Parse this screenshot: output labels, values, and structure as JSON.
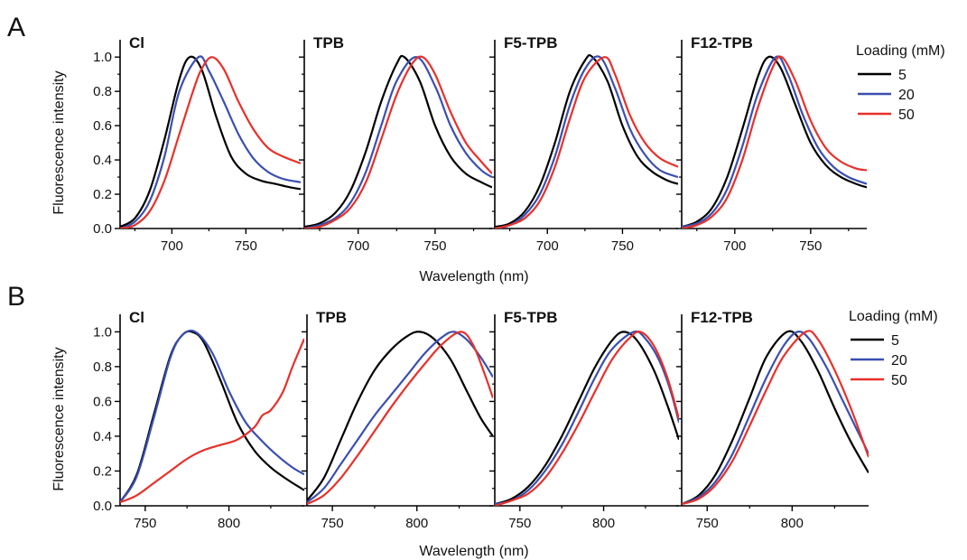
{
  "panels": [
    {
      "letter": "A",
      "ylabel": "Fluorescence intensity",
      "xlabel": "Wavelength (nm)",
      "legend": {
        "title": "Loading (mM)",
        "entries": [
          "5",
          "20",
          "50"
        ]
      },
      "yticks": [
        0.0,
        0.2,
        0.4,
        0.6,
        0.8,
        1.0
      ],
      "ytick_labels": [
        "0.0",
        "0.2",
        "0.4",
        "0.6",
        "0.8",
        "1.0"
      ]
    },
    {
      "letter": "B",
      "ylabel": "Fluorescence intensity",
      "xlabel": "Wavelength (nm)",
      "legend": {
        "title": "Loading (mM)",
        "entries": [
          "5",
          "20",
          "50"
        ]
      },
      "yticks": [
        0.0,
        0.2,
        0.4,
        0.6,
        0.8,
        1.0
      ],
      "ytick_labels": [
        "0.0",
        "0.2",
        "0.4",
        "0.6",
        "0.8",
        "1.0"
      ]
    }
  ],
  "series_colors": [
    "#000000",
    "#3a4fb0",
    "#e8302a"
  ],
  "chart_data": [
    {
      "type": "line",
      "panel": "A",
      "title": "Cl",
      "xlim": [
        665,
        787
      ],
      "ylim": [
        0,
        1.08
      ],
      "xticks": [
        700,
        750
      ],
      "series": [
        {
          "name": "5",
          "x": [
            665,
            675,
            685,
            695,
            705,
            712,
            720,
            730,
            740,
            750,
            760,
            770,
            780,
            787
          ],
          "y": [
            0.01,
            0.06,
            0.22,
            0.52,
            0.87,
            1.0,
            0.93,
            0.65,
            0.42,
            0.32,
            0.28,
            0.26,
            0.24,
            0.23
          ]
        },
        {
          "name": "20",
          "x": [
            665,
            675,
            685,
            695,
            705,
            718,
            725,
            735,
            745,
            755,
            765,
            775,
            787
          ],
          "y": [
            0.0,
            0.04,
            0.16,
            0.42,
            0.8,
            1.0,
            0.92,
            0.74,
            0.55,
            0.41,
            0.33,
            0.29,
            0.27
          ]
        },
        {
          "name": "50",
          "x": [
            665,
            675,
            685,
            695,
            705,
            715,
            720,
            727,
            735,
            745,
            755,
            765,
            775,
            787
          ],
          "y": [
            0.0,
            0.02,
            0.1,
            0.28,
            0.55,
            0.82,
            0.93,
            1.0,
            0.93,
            0.74,
            0.58,
            0.47,
            0.42,
            0.38
          ]
        }
      ]
    },
    {
      "type": "line",
      "panel": "A",
      "title": "TPB",
      "xlim": [
        665,
        787
      ],
      "ylim": [
        0,
        1.08
      ],
      "xticks": [
        700,
        750
      ],
      "series": [
        {
          "name": "5",
          "x": [
            665,
            675,
            685,
            695,
            705,
            715,
            725,
            730,
            740,
            750,
            760,
            770,
            780,
            787
          ],
          "y": [
            0.01,
            0.03,
            0.09,
            0.22,
            0.45,
            0.74,
            0.96,
            1.0,
            0.86,
            0.6,
            0.42,
            0.32,
            0.27,
            0.24
          ]
        },
        {
          "name": "20",
          "x": [
            665,
            675,
            685,
            695,
            705,
            715,
            725,
            738,
            750,
            760,
            770,
            780,
            787
          ],
          "y": [
            0.0,
            0.02,
            0.06,
            0.15,
            0.33,
            0.6,
            0.86,
            1.0,
            0.83,
            0.6,
            0.44,
            0.34,
            0.3
          ]
        },
        {
          "name": "50",
          "x": [
            665,
            675,
            685,
            695,
            705,
            715,
            725,
            735,
            742,
            750,
            760,
            770,
            780,
            787
          ],
          "y": [
            0.0,
            0.01,
            0.05,
            0.12,
            0.27,
            0.52,
            0.78,
            0.96,
            1.0,
            0.9,
            0.68,
            0.5,
            0.39,
            0.32
          ]
        }
      ]
    },
    {
      "type": "line",
      "panel": "A",
      "title": "F5-TPB",
      "xlim": [
        665,
        787
      ],
      "ylim": [
        0,
        1.08
      ],
      "xticks": [
        700,
        750
      ],
      "series": [
        {
          "name": "5",
          "x": [
            665,
            675,
            685,
            695,
            705,
            715,
            725,
            730,
            740,
            750,
            760,
            770,
            780,
            787
          ],
          "y": [
            0.01,
            0.03,
            0.1,
            0.25,
            0.5,
            0.8,
            0.98,
            1.0,
            0.86,
            0.6,
            0.42,
            0.33,
            0.28,
            0.26
          ]
        },
        {
          "name": "20",
          "x": [
            665,
            675,
            685,
            695,
            705,
            715,
            725,
            735,
            745,
            755,
            765,
            775,
            787
          ],
          "y": [
            0.0,
            0.02,
            0.08,
            0.2,
            0.42,
            0.72,
            0.93,
            1.0,
            0.82,
            0.58,
            0.43,
            0.34,
            0.3
          ]
        },
        {
          "name": "50",
          "x": [
            665,
            675,
            685,
            695,
            705,
            715,
            725,
            738,
            745,
            755,
            765,
            775,
            787
          ],
          "y": [
            0.0,
            0.02,
            0.06,
            0.16,
            0.36,
            0.64,
            0.88,
            1.0,
            0.9,
            0.66,
            0.5,
            0.41,
            0.36
          ]
        }
      ]
    },
    {
      "type": "line",
      "panel": "A",
      "title": "F12-TPB",
      "xlim": [
        665,
        787
      ],
      "ylim": [
        0,
        1.08
      ],
      "xticks": [
        700,
        750
      ],
      "series": [
        {
          "name": "5",
          "x": [
            665,
            675,
            685,
            695,
            705,
            715,
            722,
            730,
            740,
            750,
            760,
            770,
            780,
            787
          ],
          "y": [
            0.01,
            0.04,
            0.12,
            0.3,
            0.58,
            0.88,
            1.0,
            0.94,
            0.72,
            0.5,
            0.37,
            0.3,
            0.26,
            0.24
          ]
        },
        {
          "name": "20",
          "x": [
            665,
            675,
            685,
            695,
            705,
            715,
            727,
            735,
            745,
            755,
            765,
            775,
            787
          ],
          "y": [
            0.01,
            0.03,
            0.09,
            0.23,
            0.48,
            0.78,
            1.0,
            0.9,
            0.66,
            0.47,
            0.36,
            0.3,
            0.26
          ]
        },
        {
          "name": "50",
          "x": [
            665,
            675,
            685,
            695,
            705,
            715,
            725,
            731,
            740,
            750,
            760,
            770,
            780,
            787
          ],
          "y": [
            0.0,
            0.02,
            0.07,
            0.18,
            0.4,
            0.7,
            0.94,
            1.0,
            0.86,
            0.63,
            0.47,
            0.39,
            0.35,
            0.34
          ]
        }
      ]
    },
    {
      "type": "line",
      "panel": "B",
      "title": "Cl",
      "xlim": [
        735,
        845
      ],
      "ylim": [
        0,
        1.08
      ],
      "xticks": [
        750,
        800
      ],
      "series": [
        {
          "name": "5",
          "x": [
            735,
            745,
            755,
            765,
            772,
            778,
            785,
            795,
            805,
            815,
            825,
            835,
            845
          ],
          "y": [
            0.02,
            0.18,
            0.52,
            0.86,
            0.98,
            1.0,
            0.94,
            0.72,
            0.48,
            0.32,
            0.22,
            0.15,
            0.09
          ]
        },
        {
          "name": "20",
          "x": [
            735,
            745,
            755,
            765,
            772,
            780,
            790,
            800,
            810,
            820,
            830,
            838,
            845
          ],
          "y": [
            0.02,
            0.17,
            0.5,
            0.85,
            0.98,
            1.0,
            0.88,
            0.66,
            0.48,
            0.37,
            0.28,
            0.22,
            0.18
          ]
        },
        {
          "name": "50",
          "x": [
            735,
            745,
            755,
            765,
            775,
            785,
            795,
            805,
            815,
            820,
            825,
            832,
            838,
            845
          ],
          "y": [
            0.02,
            0.06,
            0.13,
            0.2,
            0.27,
            0.32,
            0.35,
            0.38,
            0.45,
            0.52,
            0.55,
            0.65,
            0.8,
            0.96
          ]
        }
      ]
    },
    {
      "type": "line",
      "panel": "B",
      "title": "TPB",
      "xlim": [
        735,
        845
      ],
      "ylim": [
        0,
        1.08
      ],
      "xticks": [
        750,
        800
      ],
      "series": [
        {
          "name": "5",
          "x": [
            735,
            745,
            755,
            765,
            775,
            785,
            795,
            802,
            810,
            820,
            830,
            838,
            845
          ],
          "y": [
            0.03,
            0.16,
            0.38,
            0.6,
            0.78,
            0.9,
            0.98,
            1.0,
            0.96,
            0.84,
            0.65,
            0.5,
            0.4
          ]
        },
        {
          "name": "20",
          "x": [
            735,
            745,
            755,
            765,
            775,
            785,
            795,
            805,
            815,
            822,
            830,
            838,
            845
          ],
          "y": [
            0.02,
            0.1,
            0.24,
            0.38,
            0.52,
            0.64,
            0.76,
            0.88,
            0.97,
            1.0,
            0.95,
            0.85,
            0.74
          ]
        },
        {
          "name": "50",
          "x": [
            735,
            745,
            755,
            765,
            775,
            785,
            795,
            805,
            815,
            826,
            833,
            840,
            845
          ],
          "y": [
            0.01,
            0.06,
            0.16,
            0.29,
            0.43,
            0.57,
            0.7,
            0.82,
            0.93,
            1.0,
            0.93,
            0.76,
            0.62
          ]
        }
      ]
    },
    {
      "type": "line",
      "panel": "B",
      "title": "F5-TPB",
      "xlim": [
        735,
        845
      ],
      "ylim": [
        0,
        1.08
      ],
      "xticks": [
        750,
        800
      ],
      "series": [
        {
          "name": "5",
          "x": [
            735,
            745,
            755,
            765,
            775,
            785,
            795,
            805,
            812,
            820,
            830,
            838,
            845
          ],
          "y": [
            0.01,
            0.04,
            0.11,
            0.23,
            0.4,
            0.6,
            0.8,
            0.95,
            1.0,
            0.95,
            0.78,
            0.58,
            0.38
          ]
        },
        {
          "name": "20",
          "x": [
            735,
            745,
            755,
            765,
            775,
            785,
            795,
            805,
            818,
            825,
            833,
            840,
            845
          ],
          "y": [
            0.01,
            0.03,
            0.09,
            0.2,
            0.35,
            0.54,
            0.74,
            0.9,
            1.0,
            0.96,
            0.84,
            0.66,
            0.48
          ]
        },
        {
          "name": "50",
          "x": [
            735,
            745,
            755,
            765,
            775,
            785,
            795,
            805,
            815,
            822,
            830,
            838,
            845
          ],
          "y": [
            0.0,
            0.03,
            0.07,
            0.16,
            0.3,
            0.47,
            0.66,
            0.84,
            0.96,
            1.0,
            0.92,
            0.74,
            0.5
          ]
        }
      ]
    },
    {
      "type": "line",
      "panel": "B",
      "title": "F12-TPB",
      "xlim": [
        735,
        845
      ],
      "ylim": [
        0,
        1.08
      ],
      "xticks": [
        750,
        800
      ],
      "series": [
        {
          "name": "5",
          "x": [
            735,
            745,
            755,
            765,
            775,
            785,
            797,
            805,
            815,
            825,
            835,
            845
          ],
          "y": [
            0.01,
            0.06,
            0.18,
            0.38,
            0.62,
            0.86,
            1.0,
            0.95,
            0.78,
            0.56,
            0.36,
            0.19
          ]
        },
        {
          "name": "20",
          "x": [
            735,
            745,
            755,
            765,
            775,
            785,
            795,
            803,
            810,
            820,
            830,
            838,
            845
          ],
          "y": [
            0.01,
            0.05,
            0.14,
            0.3,
            0.52,
            0.74,
            0.92,
            1.0,
            0.96,
            0.8,
            0.6,
            0.44,
            0.3
          ]
        },
        {
          "name": "50",
          "x": [
            735,
            745,
            755,
            765,
            775,
            785,
            795,
            808,
            815,
            825,
            835,
            845
          ],
          "y": [
            0.01,
            0.04,
            0.12,
            0.26,
            0.46,
            0.67,
            0.86,
            1.0,
            0.96,
            0.78,
            0.55,
            0.28
          ]
        }
      ]
    }
  ]
}
